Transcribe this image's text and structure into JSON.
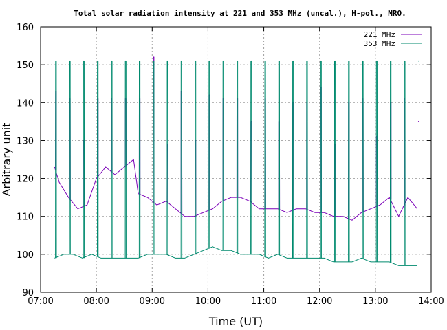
{
  "chart_data": {
    "type": "line",
    "title": "Total solar radiation intensity at 221 and 353 MHz (uncal.), H-pol., MRO.",
    "xlabel": "Time (UT)",
    "ylabel": "Arbitrary unit",
    "xlim": [
      "07:00",
      "14:00"
    ],
    "ylim": [
      90,
      160
    ],
    "x_ticks": [
      "07:00",
      "08:00",
      "09:00",
      "10:00",
      "11:00",
      "12:00",
      "13:00",
      "14:00"
    ],
    "y_ticks": [
      90,
      100,
      110,
      120,
      130,
      140,
      150,
      160
    ],
    "grid": true,
    "legend_position": "top-right",
    "colors": {
      "s221": "#7b00b8",
      "s353": "#008a6e",
      "grid": "#a0a0a0"
    },
    "series": [
      {
        "name": "221 MHz",
        "baseline": [
          [
            "07:15",
            123
          ],
          [
            "07:20",
            119
          ],
          [
            "07:30",
            115
          ],
          [
            "07:40",
            112
          ],
          [
            "07:50",
            113
          ],
          [
            "08:00",
            120
          ],
          [
            "08:10",
            123
          ],
          [
            "08:20",
            121
          ],
          [
            "08:30",
            123
          ],
          [
            "08:40",
            125
          ],
          [
            "08:45",
            116
          ],
          [
            "08:55",
            115
          ],
          [
            "09:05",
            113
          ],
          [
            "09:15",
            114
          ],
          [
            "09:25",
            112
          ],
          [
            "09:35",
            110
          ],
          [
            "09:45",
            110
          ],
          [
            "09:55",
            111
          ],
          [
            "10:05",
            112
          ],
          [
            "10:15",
            114
          ],
          [
            "10:25",
            115
          ],
          [
            "10:35",
            115
          ],
          [
            "10:45",
            114
          ],
          [
            "10:55",
            112
          ],
          [
            "11:05",
            112
          ],
          [
            "11:15",
            112
          ],
          [
            "11:25",
            111
          ],
          [
            "11:35",
            112
          ],
          [
            "11:45",
            112
          ],
          [
            "11:55",
            111
          ],
          [
            "12:05",
            111
          ],
          [
            "12:15",
            110
          ],
          [
            "12:25",
            110
          ],
          [
            "12:35",
            109
          ],
          [
            "12:45",
            111
          ],
          [
            "12:55",
            112
          ],
          [
            "13:05",
            113
          ],
          [
            "13:15",
            115
          ],
          [
            "13:25",
            110
          ],
          [
            "13:35",
            115
          ],
          [
            "13:45",
            112
          ]
        ],
        "spikes": [
          [
            "07:16",
            143
          ],
          [
            "07:31",
            141
          ],
          [
            "07:46",
            130
          ],
          [
            "08:01",
            141
          ],
          [
            "08:16",
            141
          ],
          [
            "08:31",
            141
          ],
          [
            "08:46",
            141
          ],
          [
            "09:01",
            152
          ],
          [
            "09:16",
            129
          ],
          [
            "09:31",
            143
          ],
          [
            "09:46",
            130
          ],
          [
            "10:01",
            142
          ],
          [
            "10:16",
            141
          ],
          [
            "10:31",
            141
          ],
          [
            "10:46",
            135
          ],
          [
            "11:01",
            141
          ],
          [
            "11:16",
            135
          ],
          [
            "11:31",
            140
          ],
          [
            "11:46",
            140
          ],
          [
            "12:01",
            144
          ],
          [
            "12:16",
            129
          ],
          [
            "12:31",
            140
          ],
          [
            "12:46",
            141
          ],
          [
            "13:01",
            131
          ],
          [
            "13:16",
            140
          ],
          [
            "13:31",
            141
          ],
          [
            "13:46",
            135
          ]
        ]
      },
      {
        "name": "353 MHz",
        "baseline": [
          [
            "07:15",
            99
          ],
          [
            "07:25",
            100
          ],
          [
            "07:35",
            100
          ],
          [
            "07:45",
            99
          ],
          [
            "07:55",
            100
          ],
          [
            "08:05",
            99
          ],
          [
            "08:15",
            99
          ],
          [
            "08:25",
            99
          ],
          [
            "08:35",
            99
          ],
          [
            "08:45",
            99
          ],
          [
            "08:55",
            100
          ],
          [
            "09:05",
            100
          ],
          [
            "09:15",
            100
          ],
          [
            "09:25",
            99
          ],
          [
            "09:35",
            99
          ],
          [
            "09:45",
            100
          ],
          [
            "09:55",
            101
          ],
          [
            "10:05",
            102
          ],
          [
            "10:15",
            101
          ],
          [
            "10:25",
            101
          ],
          [
            "10:35",
            100
          ],
          [
            "10:45",
            100
          ],
          [
            "10:55",
            100
          ],
          [
            "11:05",
            99
          ],
          [
            "11:15",
            100
          ],
          [
            "11:25",
            99
          ],
          [
            "11:35",
            99
          ],
          [
            "11:45",
            99
          ],
          [
            "11:55",
            99
          ],
          [
            "12:05",
            99
          ],
          [
            "12:15",
            98
          ],
          [
            "12:25",
            98
          ],
          [
            "12:35",
            98
          ],
          [
            "12:45",
            99
          ],
          [
            "12:55",
            98
          ],
          [
            "13:05",
            98
          ],
          [
            "13:15",
            98
          ],
          [
            "13:25",
            97
          ],
          [
            "13:35",
            97
          ],
          [
            "13:45",
            97
          ]
        ],
        "spikes": [
          [
            "07:16",
            151
          ],
          [
            "07:31",
            151
          ],
          [
            "07:46",
            151
          ],
          [
            "08:01",
            151
          ],
          [
            "08:16",
            151
          ],
          [
            "08:31",
            151
          ],
          [
            "08:46",
            151
          ],
          [
            "09:01",
            151
          ],
          [
            "09:16",
            151
          ],
          [
            "09:31",
            151
          ],
          [
            "09:46",
            151
          ],
          [
            "10:01",
            151
          ],
          [
            "10:16",
            151
          ],
          [
            "10:31",
            151
          ],
          [
            "10:46",
            151
          ],
          [
            "11:01",
            151
          ],
          [
            "11:16",
            151
          ],
          [
            "11:31",
            151
          ],
          [
            "11:46",
            151
          ],
          [
            "12:01",
            151
          ],
          [
            "12:16",
            151
          ],
          [
            "12:31",
            151
          ],
          [
            "12:46",
            151
          ],
          [
            "13:01",
            151
          ],
          [
            "13:16",
            151
          ],
          [
            "13:31",
            151
          ],
          [
            "13:46",
            151
          ]
        ]
      }
    ]
  }
}
